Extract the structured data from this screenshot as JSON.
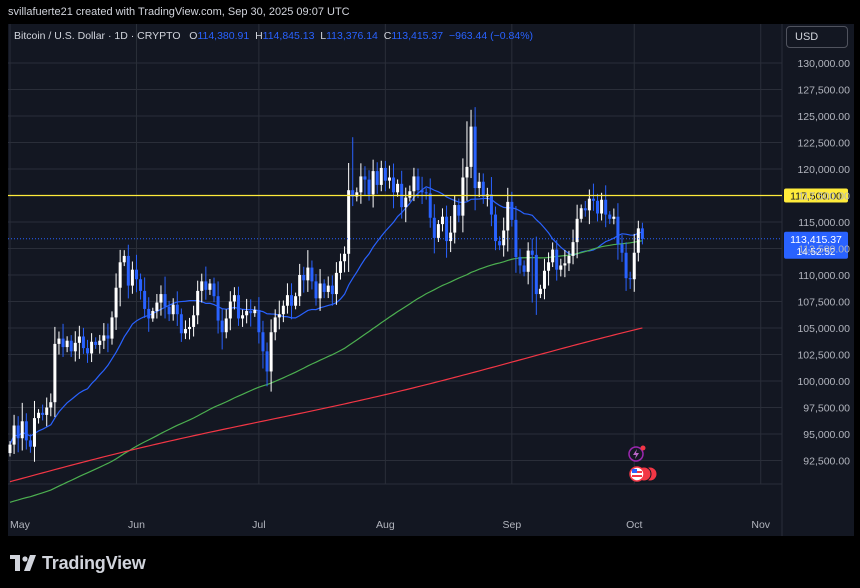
{
  "header": {
    "attribution": "svillafuerte21 created with TradingView.com, Sep 30, 2025 09:07 UTC",
    "symbol": "Bitcoin / U.S. Dollar · 1D · CRYPTO",
    "open_label": "O",
    "open": "114,380.91",
    "high_label": "H",
    "high": "114,845.13",
    "low_label": "L",
    "low": "113,376.14",
    "close_label": "C",
    "close": "113,415.37",
    "change": "−963.44 (−0.84%)"
  },
  "currency_button": "USD",
  "brand": {
    "name": "TradingView",
    "icon": "tradingview-logo-icon"
  },
  "colors": {
    "background": "#131722",
    "grid": "#2a2e39",
    "up": "#ffffff",
    "down": "#2962ff",
    "ma_fast": "#2962ff",
    "ma_mid": "#4caf50",
    "ma_slow": "#f23645",
    "resistance": "#ffeb3b",
    "price_tag": "#2962ff"
  },
  "chart_data": {
    "type": "candlestick",
    "y_ticks": [
      "130,000.00",
      "127,500.00",
      "125,000.00",
      "122,500.00",
      "120,000.00",
      "117,500.00",
      "115,000.00",
      "112,500.00",
      "110,000.00",
      "107,500.00",
      "105,000.00",
      "102,500.00",
      "100,000.00",
      "97,500.00",
      "95,000.00",
      "92,500.00"
    ],
    "y_tick_values": [
      130000,
      127500,
      125000,
      122500,
      120000,
      117500,
      115000,
      112500,
      110000,
      107500,
      105000,
      102500,
      100000,
      97500,
      95000,
      92500
    ],
    "x_ticks": [
      "May",
      "Jun",
      "Jul",
      "Aug",
      "Sep",
      "Oct",
      "Nov"
    ],
    "x_tick_days": [
      0,
      31,
      61,
      92,
      123,
      153,
      184
    ],
    "ylim": [
      90000,
      133000
    ],
    "resistance_label": "117,500.00",
    "resistance_value": 117500,
    "last_price_label": "113,415.37",
    "last_price_value": 113415.37,
    "countdown": "14:52:52",
    "candle_closes": [
      94000,
      95800,
      94600,
      96200,
      94400,
      93800,
      96500,
      97000,
      96800,
      97500,
      98000,
      103500,
      104000,
      103200,
      103800,
      102800,
      103600,
      104200,
      103100,
      102600,
      103700,
      103400,
      103800,
      104300,
      104000,
      106000,
      108800,
      111200,
      111800,
      109000,
      110500,
      109600,
      108500,
      106800,
      105900,
      106600,
      107400,
      108200,
      107000,
      106300,
      107200,
      106300,
      104500,
      104900,
      105100,
      106200,
      108500,
      109400,
      108600,
      109200,
      108000,
      105700,
      104600,
      105900,
      107500,
      108100,
      105900,
      106200,
      106600,
      106400,
      106700,
      104600,
      102800,
      100900,
      104600,
      106000,
      106300,
      107100,
      108100,
      107100,
      108000,
      110000,
      109500,
      110700,
      109400,
      107800,
      109200,
      108400,
      109000,
      108200,
      110200,
      111300,
      112000,
      118000,
      117400,
      117800,
      119300,
      119000,
      117600,
      119800,
      118500,
      120100,
      118900,
      119200,
      117800,
      118600,
      116400,
      117300,
      117900,
      119300,
      118000,
      117800,
      117700,
      115400,
      113500,
      114800,
      115500,
      113200,
      114000,
      116600,
      115600,
      119200,
      120200,
      124000,
      118200,
      118800,
      117400,
      117600,
      115700,
      113200,
      112800,
      114200,
      116900,
      115200,
      111700,
      110900,
      110300,
      112300,
      111900,
      108200,
      108700,
      110400,
      111200,
      112400,
      110500,
      110900,
      111100,
      111800,
      113100,
      115300,
      116300,
      116100,
      117200,
      117000,
      115800,
      117100,
      115700,
      115300,
      115500,
      112900,
      112100,
      109700,
      109600,
      112100,
      114400,
      113415
    ]
  }
}
